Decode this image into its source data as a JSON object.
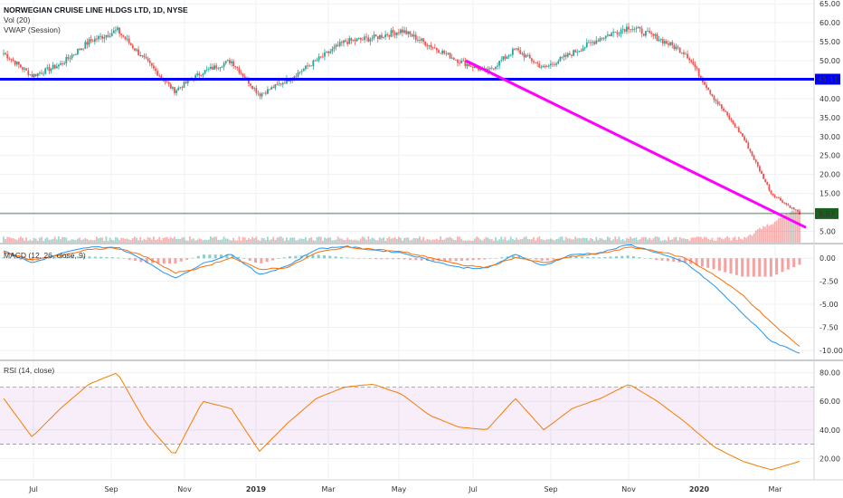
{
  "legend": {
    "title": "NORWEGIAN CRUISE LINE HLDGS LTD, 1D, NYSE",
    "vol": "Vol (20)",
    "vwap": "VWAP (Session)",
    "macd": "MACD (12, 26, close, 9)",
    "rsi": "RSI (14, close)"
  },
  "price_tag": "9.67",
  "level_tag": "45.11",
  "colors": {
    "up": "#26a69a",
    "down": "#ef5350",
    "level": "#0000ff",
    "trend": "#ff00ff",
    "macd": "#2196f3",
    "signal": "#ff6d00",
    "rsi": "#f57c00",
    "rsi_band": "#9c27b0"
  },
  "chart_data": [
    {
      "type": "candlestick",
      "title": "NORWEGIAN CRUISE LINE HLDGS LTD, 1D, NYSE",
      "x_ticks": [
        "Jul",
        "Sep",
        "Nov",
        "2019",
        "Mar",
        "May",
        "Jul",
        "Sep",
        "Nov",
        "2020",
        "Mar"
      ],
      "y_ticks": [
        5,
        10,
        15,
        20,
        25,
        30,
        35,
        40,
        45,
        50,
        55,
        60,
        65
      ],
      "ylim": [
        2,
        66
      ],
      "close_path": [
        [
          "Jun 2018",
          52
        ],
        [
          "Jul 2018",
          46
        ],
        [
          "Aug 2018",
          49
        ],
        [
          "Sep 2018",
          55
        ],
        [
          "early Oct 2018",
          58
        ],
        [
          "mid Oct 2018",
          50
        ],
        [
          "early Nov 2018",
          42
        ],
        [
          "mid Nov 2018",
          47
        ],
        [
          "Dec 2018",
          50
        ],
        [
          "late Dec 2018",
          41
        ],
        [
          "Jan 2019",
          45
        ],
        [
          "Feb 2019",
          50
        ],
        [
          "Mar 2019",
          55
        ],
        [
          "Apr 2019",
          56
        ],
        [
          "May 2019",
          58
        ],
        [
          "Jun 2019",
          54
        ],
        [
          "Jul 2019",
          50
        ],
        [
          "Aug 2019",
          47
        ],
        [
          "Sep 2019",
          53
        ],
        [
          "Oct 2019",
          48
        ],
        [
          "Nov 2019",
          52
        ],
        [
          "Dec 2019",
          56
        ],
        [
          "early Jan 2020",
          59
        ],
        [
          "late Jan 2020",
          56
        ],
        [
          "Feb 2020",
          52
        ],
        [
          "late Feb 2020",
          40
        ],
        [
          "early Mar 2020",
          30
        ],
        [
          "mid Mar 2020",
          15
        ],
        [
          "Mar 2020",
          9.67
        ]
      ],
      "last_price": 9.67,
      "horizontal_level": 45.11,
      "trendline": {
        "from": [
          "Jul 2019",
          50
        ],
        "to": [
          "Mar 2020",
          6
        ]
      }
    },
    {
      "type": "line",
      "title": "MACD (12, 26, close, 9)",
      "y_ticks": [
        0.0,
        -2.5,
        -5.0,
        -7.5,
        -10.0
      ],
      "ylim": [
        -11,
        1.5
      ],
      "series": [
        {
          "name": "MACD",
          "values": [
            0.8,
            -0.5,
            0.5,
            1.2,
            1.2,
            -0.3,
            -2.2,
            -0.6,
            0.5,
            -1.8,
            -0.8,
            1.0,
            1.3,
            0.9,
            0.6,
            -0.2,
            -1.0,
            -1.1,
            0.4,
            -0.8,
            0.4,
            0.6,
            1.5,
            0.6,
            -0.5,
            -3.0,
            -6.0,
            -9.0,
            -10.3
          ]
        },
        {
          "name": "Signal",
          "values": [
            0.7,
            -0.2,
            0.3,
            1.0,
            1.1,
            0.2,
            -1.6,
            -1.0,
            0.1,
            -1.2,
            -1.0,
            0.6,
            1.2,
            1.0,
            0.7,
            0.1,
            -0.7,
            -1.0,
            0.1,
            -0.5,
            0.2,
            0.5,
            1.2,
            0.8,
            0.0,
            -1.8,
            -4.0,
            -7.0,
            -9.6
          ]
        }
      ]
    },
    {
      "type": "line",
      "title": "RSI (14, close)",
      "y_ticks": [
        20.0,
        40.0,
        60.0,
        80.0
      ],
      "ylim": [
        5,
        88
      ],
      "bands": [
        30,
        70
      ],
      "series": [
        {
          "name": "RSI",
          "values": [
            62,
            35,
            55,
            72,
            80,
            45,
            22,
            60,
            55,
            25,
            45,
            62,
            70,
            72,
            65,
            50,
            42,
            40,
            62,
            40,
            55,
            62,
            72,
            60,
            45,
            28,
            18,
            12,
            18
          ]
        }
      ]
    }
  ]
}
